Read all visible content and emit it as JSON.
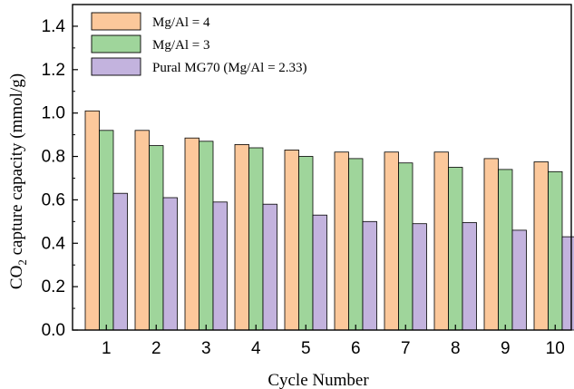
{
  "chart_data": {
    "type": "bar",
    "xlabel": "Cycle Number",
    "ylabel": {
      "prefix": "CO",
      "sub": "2",
      "suffix": " capture capacity (mmol/g)"
    },
    "categories": [
      "1",
      "2",
      "3",
      "4",
      "5",
      "6",
      "7",
      "8",
      "9",
      "10"
    ],
    "ylim": [
      0.0,
      1.5
    ],
    "yticks": [
      "0.0",
      "0.2",
      "0.4",
      "0.6",
      "0.8",
      "1.0",
      "1.2",
      "1.4"
    ],
    "grid": false,
    "legend_position": "top-left",
    "series": [
      {
        "name": "Mg/Al = 4",
        "color": "#fcc89b",
        "values": [
          1.01,
          0.92,
          0.885,
          0.855,
          0.83,
          0.82,
          0.82,
          0.82,
          0.79,
          0.775
        ]
      },
      {
        "name": "Mg/Al = 3",
        "color": "#9fd59b",
        "values": [
          0.92,
          0.85,
          0.87,
          0.84,
          0.8,
          0.79,
          0.77,
          0.75,
          0.74,
          0.73
        ]
      },
      {
        "name": "Pural MG70 (Mg/Al = 2.33)",
        "color": "#c3b3de",
        "values": [
          0.63,
          0.61,
          0.59,
          0.58,
          0.53,
          0.5,
          0.49,
          0.495,
          0.46,
          0.43
        ]
      }
    ]
  }
}
